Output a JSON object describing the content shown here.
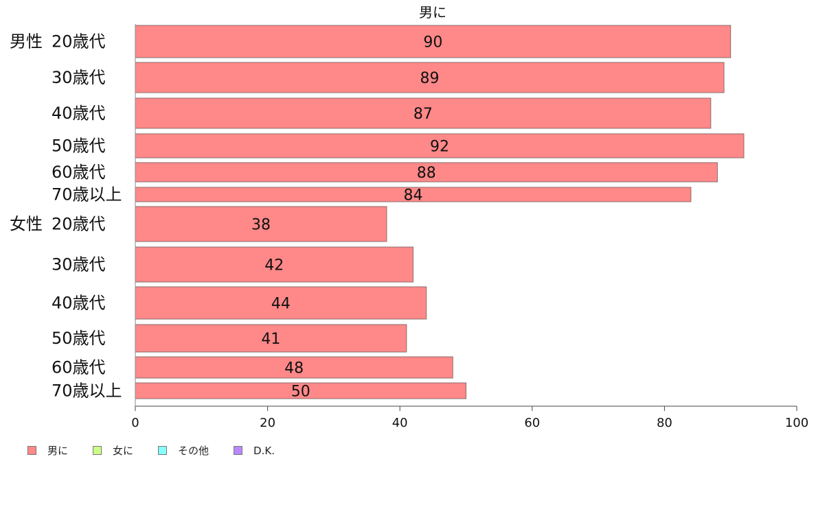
{
  "chart_data": {
    "type": "bar",
    "orientation": "horizontal",
    "title": "男に",
    "groups": [
      {
        "label": "男性",
        "categories": [
          "20歳代",
          "30歳代",
          "40歳代",
          "50歳代",
          "60歳代",
          "70歳以上"
        ],
        "values": [
          90,
          89,
          87,
          92,
          88,
          84
        ]
      },
      {
        "label": "女性",
        "categories": [
          "20歳代",
          "30歳代",
          "40歳代",
          "50歳代",
          "60歳代",
          "70歳以上"
        ],
        "values": [
          38,
          42,
          44,
          41,
          48,
          50
        ]
      }
    ],
    "xlim": [
      0,
      100
    ],
    "xticks": [
      0,
      20,
      40,
      60,
      80,
      100
    ],
    "grid": false,
    "legend": {
      "placement": "bottom-left",
      "entries": [
        {
          "name": "男に",
          "color": "#ff8888"
        },
        {
          "name": "女に",
          "color": "#ccff88"
        },
        {
          "name": "その他",
          "color": "#88ffff"
        },
        {
          "name": "D.K.",
          "color": "#bb88ff"
        }
      ]
    },
    "bar_color": "#ff8888"
  }
}
